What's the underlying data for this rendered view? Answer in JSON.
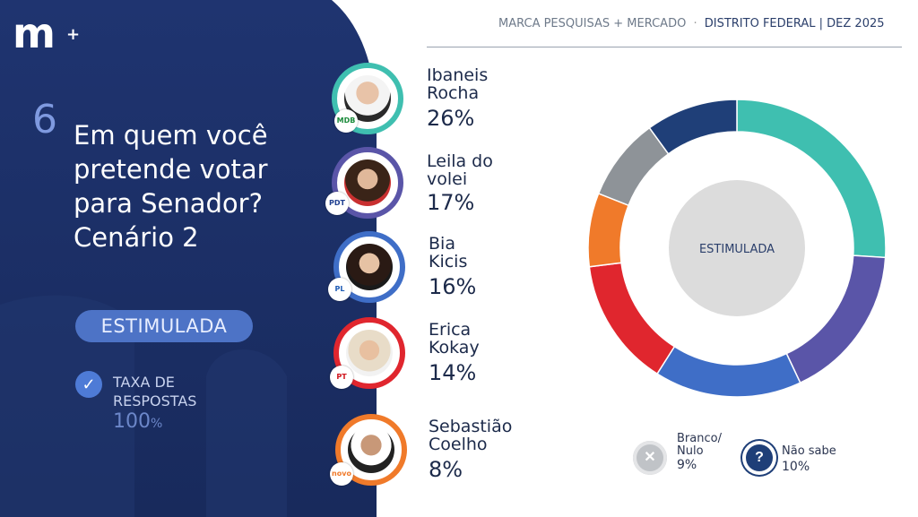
{
  "brand": {
    "logo": "m",
    "logo_plus": "+"
  },
  "header": {
    "source": "MARCA PESQUISAS + MERCADO",
    "separator": "·",
    "region": "DISTRITO FEDERAL |",
    "date": "DEZ 2025"
  },
  "question": {
    "number": "6",
    "lines": [
      "Em quem você",
      "pretende votar",
      "para Senador?",
      "Cenário 2"
    ]
  },
  "badge": "ESTIMULADA",
  "response_rate": {
    "label_line1": "TAXA DE",
    "label_line2": "RESPOSTAS",
    "value": "100",
    "unit": "%"
  },
  "candidates": [
    {
      "name_line1": "Ibaneis",
      "name_line2": "Rocha",
      "value": "26%",
      "party": "MDB",
      "color": "#3fbfb0"
    },
    {
      "name_line1": "Leila do",
      "name_line2": "volei",
      "value": "17%",
      "party": "PDT",
      "color": "#5a55a8"
    },
    {
      "name_line1": "Bia",
      "name_line2": "Kicis",
      "value": "16%",
      "party": "PL",
      "color": "#3f6ec7"
    },
    {
      "name_line1": "Erica",
      "name_line2": "Kokay",
      "value": "14%",
      "party": "PT",
      "color": "#e0262e"
    },
    {
      "name_line1": "Sebastião",
      "name_line2": "Coelho",
      "value": "8%",
      "party": "novo",
      "color": "#f07a2a"
    }
  ],
  "legend": [
    {
      "line1": "Branco/",
      "line2": "Nulo",
      "value": "9%",
      "icon": "x-icon",
      "color": "#b9bcc1"
    },
    {
      "line1": "Não sabe",
      "line2": "",
      "value": "10%",
      "icon": "question-icon",
      "color": "#1f3f78"
    }
  ],
  "chart_data": {
    "type": "pie",
    "center_label": "ESTIMULADA",
    "categories": [
      "Ibaneis Rocha",
      "Leila do volei",
      "Bia Kicis",
      "Erica Kokay",
      "Sebastião Coelho",
      "Branco/Nulo",
      "Não sabe"
    ],
    "values": [
      26,
      17,
      16,
      14,
      8,
      9,
      10
    ],
    "colors": [
      "#3fbfb0",
      "#5a55a8",
      "#3f6ec7",
      "#e0262e",
      "#f07a2a",
      "#8e9398",
      "#1f3f78"
    ]
  }
}
